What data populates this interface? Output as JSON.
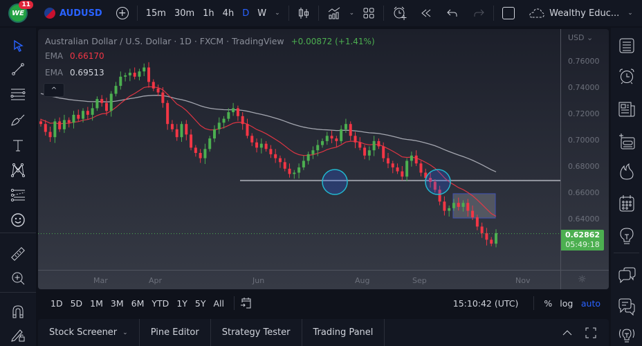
{
  "topbar": {
    "notification_count": "11",
    "logo_text": "WE",
    "symbol": "AUDUSD",
    "timeframes": [
      "15m",
      "30m",
      "1h",
      "4h",
      "D",
      "W"
    ],
    "active_timeframe": "D",
    "layout_name": "Wealthy Educ..."
  },
  "chart": {
    "title": "Australian Dollar / U.S. Dollar · 1D · FXCM · TradingView",
    "change": "+0.00872 (+1.41%)",
    "ema1_label": "EMA",
    "ema1_value": "0.66170",
    "ema1_color": "#f23645",
    "ema2_label": "EMA",
    "ema2_value": "0.69513",
    "ema2_color": "#d1d4dc",
    "currency": "USD",
    "price_ticks": [
      "0.76000",
      "0.74000",
      "0.72000",
      "0.70000",
      "0.68000",
      "0.66000",
      "0.64000"
    ],
    "current_price": "0.62862",
    "countdown": "05:49:18",
    "time_ticks": [
      "Mar",
      "Apr",
      "Jun",
      "Aug",
      "Sep",
      "Nov"
    ],
    "up_color": "#4caf50",
    "down_color": "#f23645"
  },
  "chart_data": {
    "type": "candlestick",
    "title": "Australian Dollar / U.S. Dollar · 1D · FXCM",
    "ylim": [
      0.615,
      0.77
    ],
    "y_ticks": [
      0.76,
      0.74,
      0.72,
      0.7,
      0.68,
      0.66,
      0.64
    ],
    "x_ticks": [
      "Mar",
      "Apr",
      "Jun",
      "Aug",
      "Sep",
      "Nov"
    ],
    "close_path": [
      0.712,
      0.706,
      0.702,
      0.714,
      0.708,
      0.715,
      0.713,
      0.719,
      0.716,
      0.722,
      0.719,
      0.724,
      0.731,
      0.728,
      0.722,
      0.735,
      0.741,
      0.748,
      0.749,
      0.751,
      0.748,
      0.752,
      0.755,
      0.744,
      0.739,
      0.736,
      0.728,
      0.712,
      0.708,
      0.702,
      0.712,
      0.704,
      0.694,
      0.69,
      0.686,
      0.693,
      0.701,
      0.708,
      0.713,
      0.716,
      0.721,
      0.724,
      0.718,
      0.712,
      0.703,
      0.698,
      0.694,
      0.697,
      0.693,
      0.689,
      0.686,
      0.683,
      0.678,
      0.674,
      0.675,
      0.679,
      0.684,
      0.689,
      0.692,
      0.696,
      0.699,
      0.703,
      0.701,
      0.699,
      0.708,
      0.712,
      0.703,
      0.698,
      0.694,
      0.688,
      0.692,
      0.699,
      0.695,
      0.686,
      0.682,
      0.679,
      0.676,
      0.672,
      0.684,
      0.688,
      0.682,
      0.675,
      0.671,
      0.668,
      0.662,
      0.653,
      0.646,
      0.648,
      0.652,
      0.649,
      0.652,
      0.646,
      0.641,
      0.634,
      0.629,
      0.624,
      0.621,
      0.629
    ],
    "series": [
      {
        "name": "EMA (fast)",
        "last": 0.6617,
        "color": "#f23645"
      },
      {
        "name": "EMA (slow)",
        "last": 0.69513,
        "color": "#d1d4dc"
      }
    ],
    "annotations": [
      {
        "type": "horizontal_line",
        "price": 0.669
      },
      {
        "type": "circle",
        "label": "support touch 1",
        "month": "Jul"
      },
      {
        "type": "circle",
        "label": "support touch 2",
        "month": "Sep"
      },
      {
        "type": "rectangle",
        "label": "consolidation box",
        "price_range": [
          0.6405,
          0.659
        ]
      }
    ],
    "last_price": 0.62862
  },
  "range_bar": {
    "ranges": [
      "1D",
      "5D",
      "1M",
      "3M",
      "6M",
      "YTD",
      "1Y",
      "5Y",
      "All"
    ],
    "clock": "15:10:42 (UTC)",
    "percent": "%",
    "log": "log",
    "auto": "auto"
  },
  "bottom_panel": {
    "tabs": [
      "Stock Screener",
      "Pine Editor",
      "Strategy Tester",
      "Trading Panel"
    ]
  }
}
